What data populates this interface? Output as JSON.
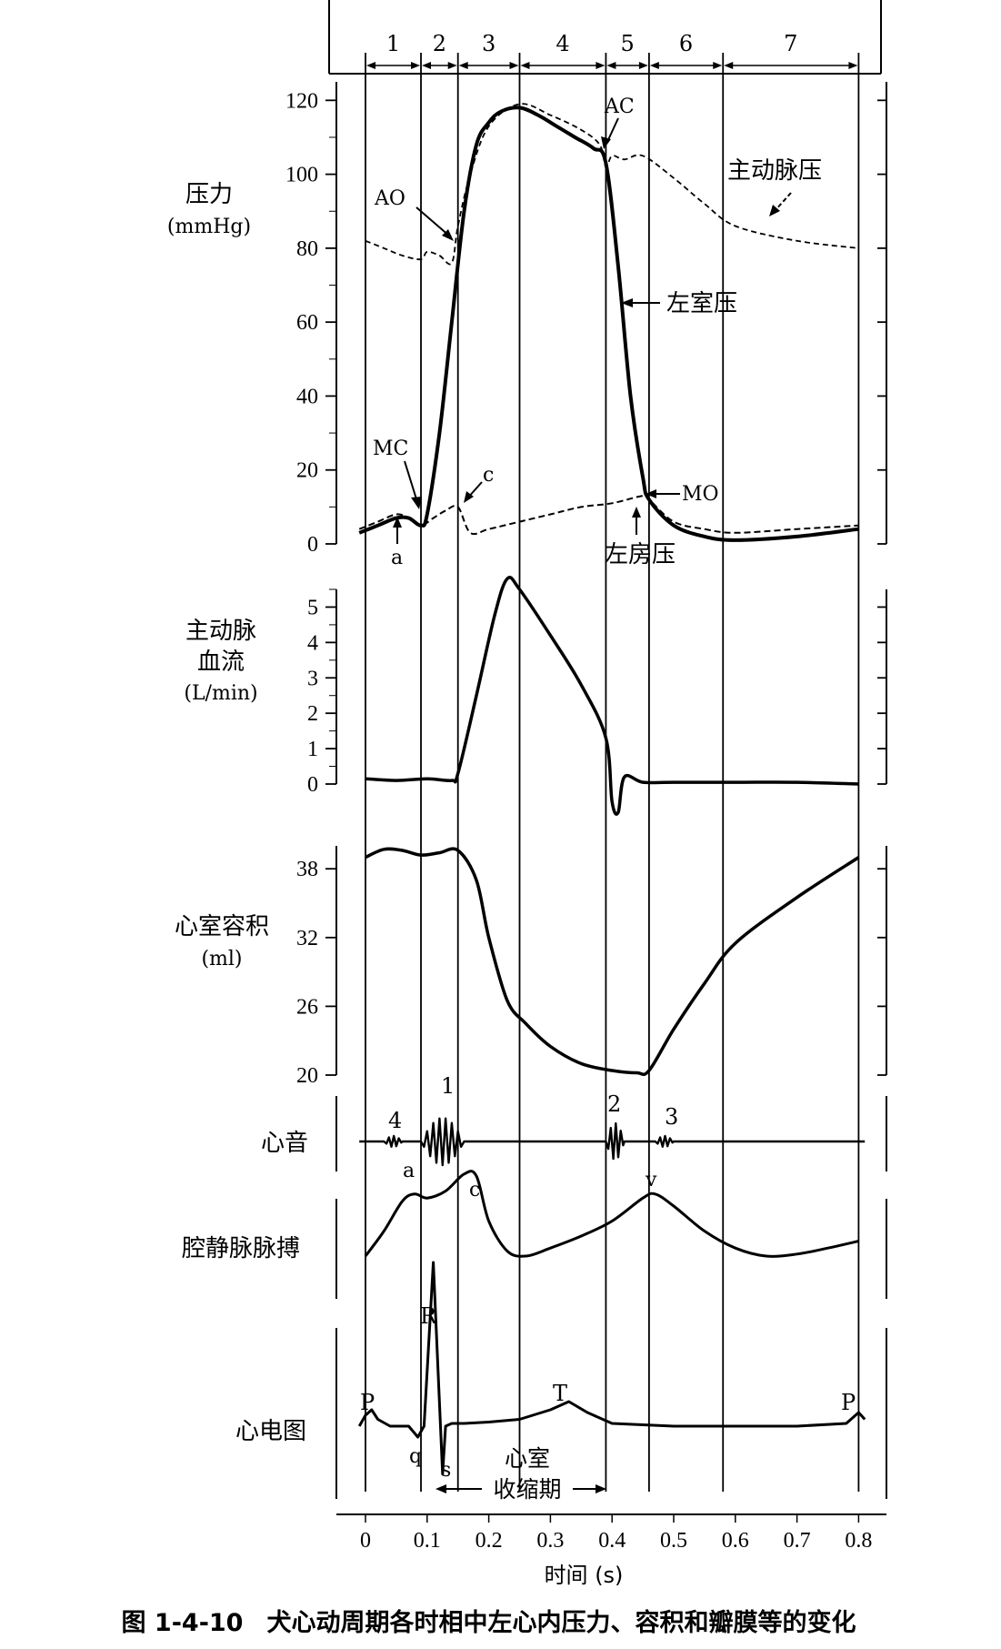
{
  "phases": {
    "labels": [
      "1",
      "2",
      "3",
      "4",
      "5",
      "6",
      "7"
    ],
    "boundaries": [
      0,
      0.09,
      0.15,
      0.25,
      0.39,
      0.46,
      0.58,
      0.8
    ]
  },
  "x_axis": {
    "label": "时间 (s)",
    "ticks": [
      "0",
      "0.1",
      "0.2",
      "0.3",
      "0.4",
      "0.5",
      "0.6",
      "0.7",
      "0.8"
    ],
    "range": [
      0,
      0.8
    ]
  },
  "pressure": {
    "ylabel_line1": "压力",
    "ylabel_line2": "(mmHg)",
    "ticks": [
      "0",
      "20",
      "40",
      "60",
      "80",
      "100",
      "120"
    ],
    "range": [
      0,
      125
    ],
    "annotations": {
      "AO": "AO",
      "AC": "AC",
      "MC": "MC",
      "MO": "MO",
      "c": "c",
      "a": "a",
      "aortic": "主动脉压",
      "lv": "左室压",
      "la": "左房压"
    }
  },
  "flow": {
    "ylabel_line1": "主动脉",
    "ylabel_line2": "血流",
    "ylabel_line3": "(L/min)",
    "ticks": [
      "0",
      "1",
      "2",
      "3",
      "4",
      "5"
    ],
    "range": [
      0,
      5.5
    ]
  },
  "volume": {
    "ylabel_line1": "心室容积",
    "ylabel_line2": "(ml)",
    "ticks": [
      "20",
      "26",
      "32",
      "38"
    ],
    "range": [
      20,
      40
    ]
  },
  "heart_sounds": {
    "label": "心音",
    "markers": [
      "4",
      "1",
      "2",
      "3"
    ]
  },
  "jvp": {
    "label": "腔静脉脉搏",
    "markers": [
      "a",
      "c",
      "v"
    ]
  },
  "ecg": {
    "label": "心电图",
    "markers": [
      "P",
      "R",
      "q",
      "s",
      "T",
      "P"
    ],
    "systole_line1": "心室",
    "systole_line2": "收缩期"
  },
  "caption": {
    "number": "图 1-4-10",
    "text": "犬心动周期各时相中左心内压力、容积和瓣膜等的变化"
  },
  "chart_data": [
    {
      "type": "line",
      "title": "",
      "xlabel": "时间 (s)",
      "ylabel": "压力 (mmHg)",
      "ylim": [
        0,
        125
      ],
      "xlim": [
        0,
        0.8
      ],
      "series": [
        {
          "name": "左室压",
          "x": [
            -0.01,
            0.02,
            0.05,
            0.07,
            0.09,
            0.1,
            0.12,
            0.14,
            0.16,
            0.18,
            0.2,
            0.22,
            0.25,
            0.28,
            0.31,
            0.34,
            0.37,
            0.39,
            0.41,
            0.43,
            0.45,
            0.46,
            0.5,
            0.55,
            0.6,
            0.7,
            0.8
          ],
          "y": [
            3,
            5,
            7,
            7,
            5,
            8,
            30,
            60,
            90,
            108,
            114,
            117,
            118,
            116,
            113,
            110,
            107,
            103,
            75,
            40,
            18,
            12,
            5,
            2,
            1,
            2,
            4
          ]
        },
        {
          "name": "主动脉压",
          "x": [
            0,
            0.03,
            0.06,
            0.09,
            0.1,
            0.12,
            0.14,
            0.15,
            0.17,
            0.2,
            0.25,
            0.3,
            0.35,
            0.38,
            0.39,
            0.4,
            0.42,
            0.45,
            0.5,
            0.55,
            0.6,
            0.7,
            0.8
          ],
          "y": [
            82,
            80,
            78,
            77,
            79,
            78,
            76,
            86,
            100,
            113,
            119,
            116,
            112,
            108,
            102,
            105,
            104,
            105,
            99,
            92,
            86,
            82,
            80
          ]
        },
        {
          "name": "左房压",
          "x": [
            -0.01,
            0.02,
            0.05,
            0.07,
            0.09,
            0.11,
            0.13,
            0.15,
            0.17,
            0.2,
            0.25,
            0.3,
            0.35,
            0.4,
            0.45,
            0.46,
            0.5,
            0.55,
            0.6,
            0.7,
            0.8
          ],
          "y": [
            4,
            6,
            8,
            7,
            5,
            7,
            9,
            10,
            3,
            4,
            6,
            8,
            10,
            11,
            13,
            12,
            6,
            4,
            3,
            4,
            5
          ]
        }
      ]
    },
    {
      "type": "line",
      "title": "",
      "xlabel": "时间 (s)",
      "ylabel": "主动脉血流 (L/min)",
      "ylim": [
        0,
        5.5
      ],
      "series": [
        {
          "name": "",
          "x": [
            0,
            0.05,
            0.1,
            0.14,
            0.15,
            0.18,
            0.21,
            0.23,
            0.25,
            0.3,
            0.35,
            0.39,
            0.4,
            0.41,
            0.42,
            0.45,
            0.5,
            0.6,
            0.7,
            0.8
          ],
          "y": [
            0.15,
            0.1,
            0.15,
            0.1,
            0.3,
            2.5,
            4.8,
            5.8,
            5.5,
            4.2,
            2.8,
            1.3,
            -0.5,
            -0.8,
            0.2,
            0.05,
            0.05,
            0.05,
            0.05,
            0.0
          ]
        }
      ]
    },
    {
      "type": "line",
      "title": "",
      "xlabel": "时间 (s)",
      "ylabel": "心室容积 (ml)",
      "ylim": [
        20,
        40
      ],
      "series": [
        {
          "name": "",
          "x": [
            0,
            0.03,
            0.06,
            0.09,
            0.12,
            0.15,
            0.18,
            0.2,
            0.23,
            0.26,
            0.3,
            0.35,
            0.4,
            0.44,
            0.46,
            0.5,
            0.55,
            0.6,
            0.7,
            0.8
          ],
          "y": [
            39,
            39.7,
            39.6,
            39.2,
            39.4,
            39.6,
            37,
            32,
            26.5,
            24.5,
            22.5,
            21,
            20.4,
            20.2,
            20.4,
            24,
            28,
            31.5,
            35.5,
            39
          ]
        }
      ]
    },
    {
      "type": "line",
      "title": "",
      "xlabel": "时间 (s)",
      "ylabel": "腔静脉脉搏",
      "series": [
        {
          "name": "",
          "x": [
            0,
            0.03,
            0.06,
            0.08,
            0.1,
            0.13,
            0.16,
            0.18,
            0.2,
            0.23,
            0.26,
            0.3,
            0.35,
            0.4,
            0.45,
            0.47,
            0.5,
            0.55,
            0.6,
            0.65,
            0.7,
            0.75,
            0.8
          ],
          "y": [
            0.1,
            0.35,
            0.65,
            0.72,
            0.68,
            0.75,
            0.92,
            0.9,
            0.45,
            0.15,
            0.1,
            0.18,
            0.3,
            0.45,
            0.68,
            0.72,
            0.6,
            0.35,
            0.18,
            0.1,
            0.12,
            0.18,
            0.25
          ]
        }
      ]
    },
    {
      "type": "line",
      "title": "",
      "xlabel": "时间 (s)",
      "ylabel": "心电图",
      "series": [
        {
          "name": "",
          "x": [
            -0.01,
            0.0,
            0.01,
            0.02,
            0.04,
            0.07,
            0.085,
            0.095,
            0.11,
            0.125,
            0.13,
            0.14,
            0.16,
            0.2,
            0.25,
            0.3,
            0.33,
            0.36,
            0.4,
            0.5,
            0.6,
            0.7,
            0.78,
            0.8,
            0.81
          ],
          "y": [
            0.0,
            0.08,
            0.12,
            0.05,
            0.0,
            0.0,
            -0.08,
            0.0,
            1.2,
            -0.35,
            0.0,
            0.02,
            0.02,
            0.03,
            0.05,
            0.12,
            0.18,
            0.1,
            0.02,
            0.0,
            0.0,
            0.0,
            0.02,
            0.1,
            0.05
          ]
        }
      ]
    }
  ]
}
